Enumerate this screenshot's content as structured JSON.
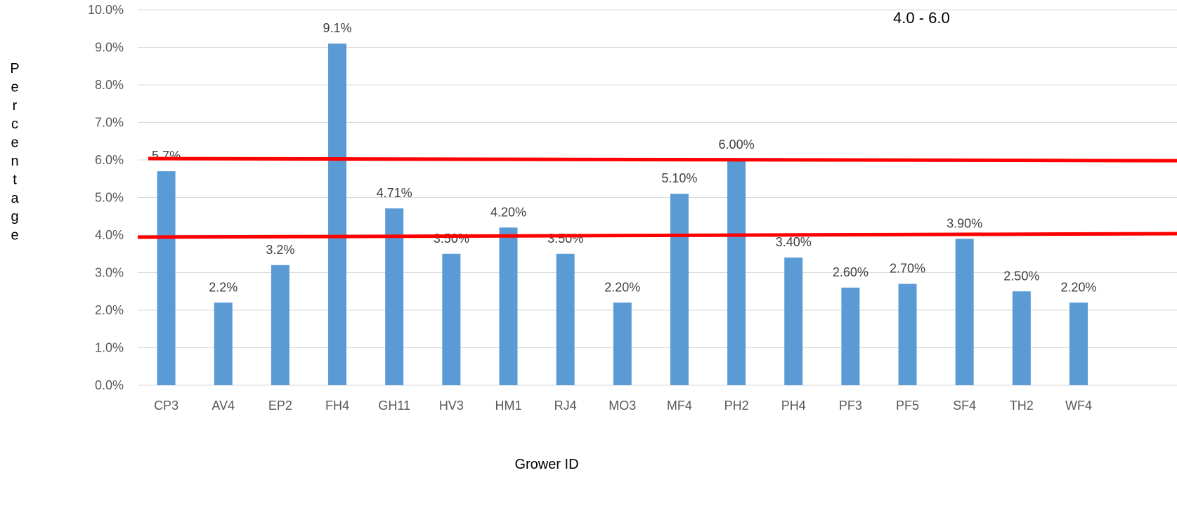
{
  "chart_data": {
    "type": "bar",
    "title": "",
    "xlabel": "Grower ID",
    "ylabel": "Percentage",
    "ylim": [
      0,
      10
    ],
    "yticks": [
      "0.0%",
      "1.0%",
      "2.0%",
      "3.0%",
      "4.0%",
      "5.0%",
      "6.0%",
      "7.0%",
      "8.0%",
      "9.0%",
      "10.0%"
    ],
    "grid": true,
    "categories": [
      "CP3",
      "AV4",
      "EP2",
      "FH4",
      "GH11",
      "HV3",
      "HM1",
      "RJ4",
      "MO3",
      "MF4",
      "PH2",
      "PH4",
      "PF3",
      "PF5",
      "SF4",
      "TH2",
      "WF4"
    ],
    "values": [
      5.7,
      2.2,
      3.2,
      9.1,
      4.71,
      3.5,
      4.2,
      3.5,
      2.2,
      5.1,
      6.0,
      3.4,
      2.6,
      2.7,
      3.9,
      2.5,
      2.2
    ],
    "data_labels": [
      "5.7%",
      "2.2%",
      "3.2%",
      "9.1%",
      "4.71%",
      "3.50%",
      "4.20%",
      "3.50%",
      "2.20%",
      "5.10%",
      "6.00%",
      "3.40%",
      "2.60%",
      "2.70%",
      "3.90%",
      "2.50%",
      "2.20%"
    ],
    "bar_color": "#5B9BD5",
    "reference_lines": [
      {
        "value": 4.0,
        "color": "#FF0000"
      },
      {
        "value": 6.0,
        "color": "#FF0000"
      }
    ],
    "annotation": {
      "text": "4.0 - 6.0"
    }
  }
}
